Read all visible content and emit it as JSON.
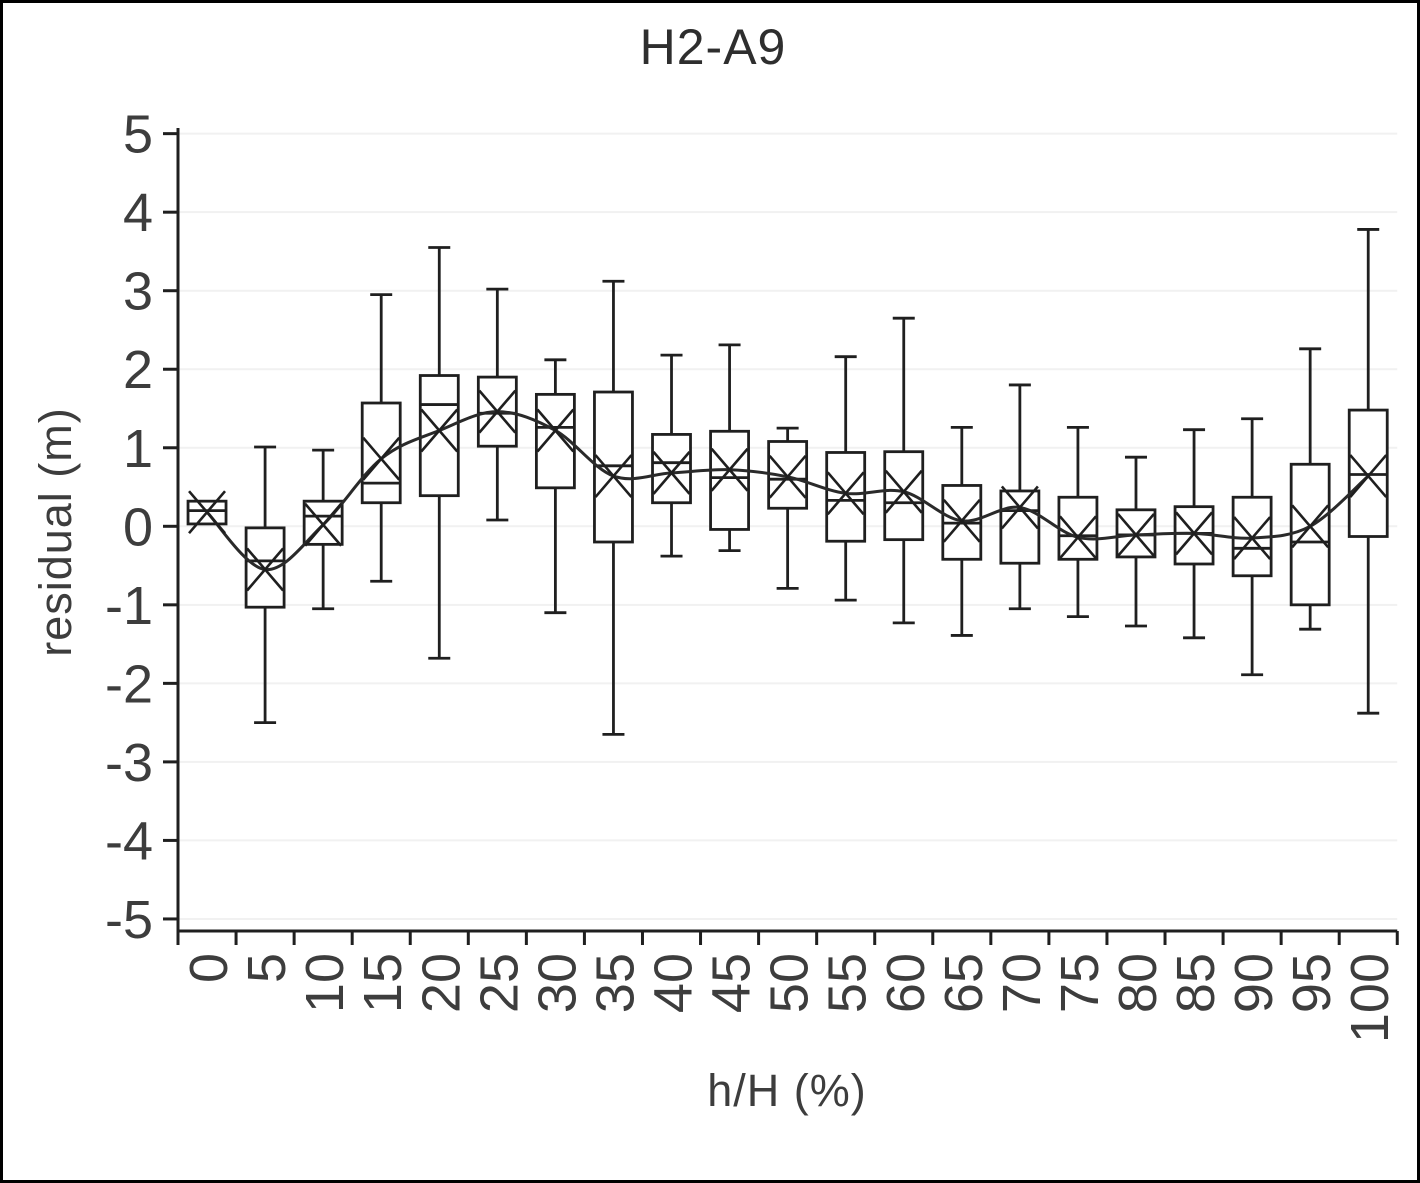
{
  "colors": {
    "line": "#1f1f1f",
    "mean_line": "#2a2a2a",
    "grid": "#f1f1f1",
    "text": "#3d3d3d",
    "background": "#ffffff"
  },
  "chart_data": {
    "type": "boxplot",
    "title": "H2-A9",
    "xlabel": "h/H (%)",
    "ylabel": "residual (m)",
    "ylim": [
      -5,
      5
    ],
    "y_ticks": [
      5,
      4,
      3,
      2,
      1,
      0,
      -1,
      -2,
      -3,
      -4,
      -5
    ],
    "grid": "horizontal",
    "legend": "none",
    "mean_marker": "x",
    "mean_line_smoothed": true,
    "categories": [
      "0",
      "5",
      "10",
      "15",
      "20",
      "25",
      "30",
      "35",
      "40",
      "45",
      "50",
      "55",
      "60",
      "65",
      "70",
      "75",
      "80",
      "85",
      "90",
      "95",
      "100"
    ],
    "boxes": [
      {
        "whisker_low": 0.03,
        "q1": 0.03,
        "median": 0.2,
        "q3": 0.32,
        "whisker_high": 0.32,
        "mean": 0.18
      },
      {
        "whisker_low": -2.5,
        "q1": -1.03,
        "median": -0.44,
        "q3": -0.02,
        "whisker_high": 1.01,
        "mean": -0.55
      },
      {
        "whisker_low": -1.05,
        "q1": -0.23,
        "median": 0.13,
        "q3": 0.32,
        "whisker_high": 0.97,
        "mean": 0.02
      },
      {
        "whisker_low": -0.7,
        "q1": 0.3,
        "median": 0.55,
        "q3": 1.57,
        "whisker_high": 2.95,
        "mean": 0.86
      },
      {
        "whisker_low": -1.68,
        "q1": 0.39,
        "median": 1.55,
        "q3": 1.92,
        "whisker_high": 3.55,
        "mean": 1.22
      },
      {
        "whisker_low": 0.08,
        "q1": 1.02,
        "median": 1.44,
        "q3": 1.9,
        "whisker_high": 3.02,
        "mean": 1.46
      },
      {
        "whisker_low": -1.1,
        "q1": 0.49,
        "median": 1.26,
        "q3": 1.68,
        "whisker_high": 2.12,
        "mean": 1.22
      },
      {
        "whisker_low": -2.65,
        "q1": -0.2,
        "median": 0.77,
        "q3": 1.71,
        "whisker_high": 3.12,
        "mean": 0.64
      },
      {
        "whisker_low": -0.38,
        "q1": 0.3,
        "median": 0.81,
        "q3": 1.17,
        "whisker_high": 2.18,
        "mean": 0.68
      },
      {
        "whisker_low": -0.31,
        "q1": -0.04,
        "median": 0.62,
        "q3": 1.21,
        "whisker_high": 2.31,
        "mean": 0.72
      },
      {
        "whisker_low": -0.79,
        "q1": 0.23,
        "median": 0.6,
        "q3": 1.08,
        "whisker_high": 1.25,
        "mean": 0.63
      },
      {
        "whisker_low": -0.94,
        "q1": -0.19,
        "median": 0.33,
        "q3": 0.94,
        "whisker_high": 2.16,
        "mean": 0.42
      },
      {
        "whisker_low": -1.23,
        "q1": -0.17,
        "median": 0.3,
        "q3": 0.95,
        "whisker_high": 2.65,
        "mean": 0.44
      },
      {
        "whisker_low": -1.39,
        "q1": -0.42,
        "median": 0.04,
        "q3": 0.52,
        "whisker_high": 1.26,
        "mean": 0.07
      },
      {
        "whisker_low": -1.05,
        "q1": -0.47,
        "median": 0.2,
        "q3": 0.45,
        "whisker_high": 1.8,
        "mean": 0.24
      },
      {
        "whisker_low": -1.15,
        "q1": -0.42,
        "median": -0.12,
        "q3": 0.37,
        "whisker_high": 1.26,
        "mean": -0.14
      },
      {
        "whisker_low": -1.27,
        "q1": -0.39,
        "median": -0.11,
        "q3": 0.21,
        "whisker_high": 0.88,
        "mean": -0.11
      },
      {
        "whisker_low": -1.42,
        "q1": -0.48,
        "median": -0.09,
        "q3": 0.25,
        "whisker_high": 1.23,
        "mean": -0.09
      },
      {
        "whisker_low": -1.89,
        "q1": -0.63,
        "median": -0.28,
        "q3": 0.37,
        "whisker_high": 1.37,
        "mean": -0.15
      },
      {
        "whisker_low": -1.31,
        "q1": -1.0,
        "median": -0.2,
        "q3": 0.79,
        "whisker_high": 2.26,
        "mean": 0.0
      },
      {
        "whisker_low": -2.38,
        "q1": -0.13,
        "median": 0.66,
        "q3": 1.48,
        "whisker_high": 3.78,
        "mean": 0.64
      }
    ]
  }
}
